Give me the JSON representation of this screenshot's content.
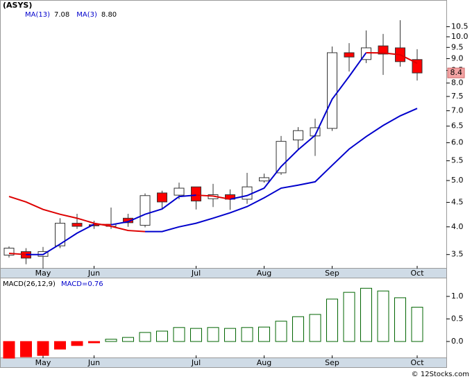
{
  "footer": "© 12Stocks.com",
  "chart_data": [
    {
      "type": "candlestick",
      "title": "(ASYS)",
      "log": true,
      "categories": [
        null,
        null,
        "May",
        null,
        null,
        "Jun",
        null,
        null,
        null,
        null,
        null,
        "Jul",
        null,
        null,
        null,
        "Aug",
        null,
        null,
        null,
        "Sep",
        null,
        null,
        null,
        null,
        "Oct"
      ],
      "open": [
        3.49,
        3.55,
        3.47,
        3.65,
        4.07,
        4.04,
        4.01,
        4.17,
        4.03,
        4.71,
        4.66,
        4.85,
        4.58,
        4.67,
        4.57,
        4.99,
        5.19,
        6.08,
        6.2,
        6.43,
        9.26,
        8.96,
        9.57,
        9.48,
        8.96
      ],
      "high": [
        3.64,
        3.61,
        3.63,
        4.17,
        4.26,
        4.12,
        4.39,
        4.26,
        4.7,
        4.76,
        4.95,
        4.85,
        4.92,
        4.79,
        5.19,
        5.17,
        6.2,
        6.47,
        6.74,
        9.54,
        9.7,
        10.31,
        10.14,
        10.83,
        9.42
      ],
      "low": [
        3.45,
        3.34,
        3.27,
        3.61,
        3.96,
        3.96,
        3.96,
        4.0,
        3.99,
        4.35,
        4.57,
        4.35,
        4.4,
        4.34,
        4.47,
        4.95,
        5.14,
        5.82,
        5.63,
        6.35,
        8.46,
        8.81,
        8.32,
        8.66,
        8.1
      ],
      "close": [
        3.61,
        3.44,
        3.55,
        4.07,
        4.01,
        4.02,
        4.05,
        4.08,
        4.65,
        4.51,
        4.82,
        4.53,
        4.67,
        4.57,
        4.85,
        5.07,
        6.04,
        6.36,
        6.45,
        9.26,
        9.07,
        9.48,
        9.2,
        8.87,
        8.4
      ],
      "up_color": "#ffffff",
      "down_color": "#ff0000",
      "wick_color": "#333333",
      "ma_up_color": "#0000cc",
      "ma_down_color": "#dd0000",
      "series": [
        {
          "name": "MA(13)",
          "value_label": "7.08",
          "values": [
            4.63,
            4.51,
            4.35,
            4.25,
            4.17,
            4.07,
            4.01,
            3.93,
            3.91,
            3.91,
            4.0,
            4.07,
            4.17,
            4.28,
            4.41,
            4.6,
            4.82,
            4.89,
            4.97,
            5.38,
            5.82,
            6.18,
            6.52,
            6.83,
            7.08
          ]
        },
        {
          "name": "MA(3)",
          "value_label": "8.80",
          "values": [
            3.52,
            3.5,
            3.5,
            3.68,
            3.88,
            4.05,
            4.04,
            4.1,
            4.25,
            4.36,
            4.63,
            4.66,
            4.64,
            4.57,
            4.65,
            4.82,
            5.35,
            5.8,
            6.22,
            7.4,
            8.26,
            9.26,
            9.25,
            9.17,
            8.8
          ]
        }
      ],
      "last_price": 8.4,
      "last_price_color": "#f4a4a4",
      "ylim": [
        3.27,
        11.86
      ],
      "yticks": [
        3.5,
        {
          "value": 4,
          "label": "4.0"
        },
        4.5,
        {
          "value": 5,
          "label": "5.0"
        },
        5.5,
        {
          "value": 6,
          "label": "6.0"
        },
        6.5,
        {
          "value": 7,
          "label": "7.0"
        },
        7.5,
        {
          "value": 8,
          "label": "8.0"
        },
        8.5,
        {
          "value": 9,
          "label": "9.0"
        },
        9.5,
        {
          "value": 10,
          "label": "10.0"
        },
        10.5
      ]
    },
    {
      "type": "bar",
      "title": "MACD(26,12,9)",
      "subtitle": "MACD=0.76",
      "categories": [
        null,
        null,
        "May",
        null,
        null,
        "Jun",
        null,
        null,
        null,
        null,
        null,
        "Jul",
        null,
        null,
        null,
        "Aug",
        null,
        null,
        null,
        "Sep",
        null,
        null,
        null,
        null,
        "Oct"
      ],
      "values": [
        -0.37,
        -0.34,
        -0.31,
        -0.17,
        -0.09,
        -0.03,
        0.05,
        0.09,
        0.2,
        0.23,
        0.31,
        0.29,
        0.31,
        0.29,
        0.31,
        0.32,
        0.45,
        0.55,
        0.6,
        0.94,
        1.09,
        1.18,
        1.12,
        0.97,
        0.76
      ],
      "positive_color": "#006400",
      "negative_color": "#ff0000",
      "ylim": [
        -0.37,
        1.4
      ],
      "yticks": [
        {
          "value": 0,
          "label": "0.0"
        },
        {
          "value": 0.5,
          "label": "0.5"
        },
        {
          "value": 1,
          "label": "1.0"
        }
      ]
    }
  ]
}
